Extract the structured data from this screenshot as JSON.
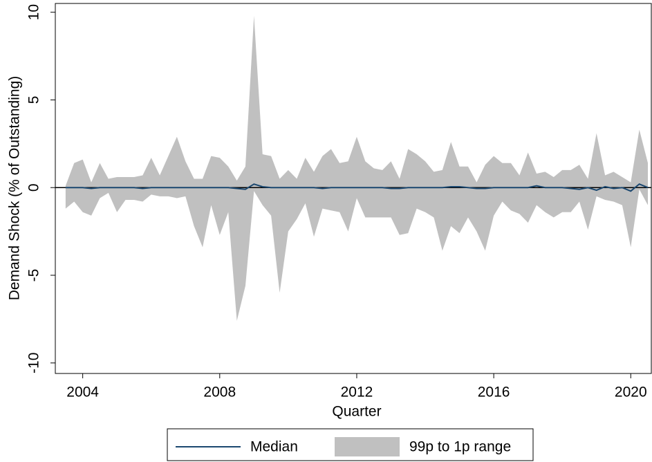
{
  "chart_data": {
    "type": "band-line",
    "x_label": "Quarter",
    "y_label": "Demand Shock (% of Outstanding)",
    "x": [
      2003.5,
      2003.75,
      2004,
      2004.25,
      2004.5,
      2004.75,
      2005,
      2005.25,
      2005.5,
      2005.75,
      2006,
      2006.25,
      2006.5,
      2006.75,
      2007,
      2007.25,
      2007.5,
      2007.75,
      2008,
      2008.25,
      2008.5,
      2008.75,
      2009,
      2009.25,
      2009.5,
      2009.75,
      2010,
      2010.25,
      2010.5,
      2010.75,
      2011,
      2011.25,
      2011.5,
      2011.75,
      2012,
      2012.25,
      2012.5,
      2012.75,
      2013,
      2013.25,
      2013.5,
      2013.75,
      2014,
      2014.25,
      2014.5,
      2014.75,
      2015,
      2015.25,
      2015.5,
      2015.75,
      2016,
      2016.25,
      2016.5,
      2016.75,
      2017,
      2017.25,
      2017.5,
      2017.75,
      2018,
      2018.25,
      2018.5,
      2018.75,
      2019,
      2019.25,
      2019.5,
      2019.75,
      2020,
      2020.25,
      2020.5
    ],
    "series": [
      {
        "name": "Median",
        "color": "#1a476f",
        "values": [
          0,
          0,
          0,
          -0.05,
          0,
          0,
          0,
          0,
          0,
          -0.05,
          0,
          0,
          0,
          0,
          0,
          0,
          0,
          0,
          0,
          0,
          -0.05,
          -0.1,
          0.2,
          0.05,
          0,
          0,
          0,
          0,
          0,
          0,
          -0.05,
          0,
          0,
          0,
          0,
          0,
          0,
          0,
          -0.05,
          -0.05,
          0,
          0,
          0,
          0,
          0,
          0.05,
          0.05,
          0,
          -0.05,
          -0.05,
          0,
          0,
          0,
          0,
          0,
          0.1,
          0,
          0,
          0,
          -0.05,
          -0.1,
          0,
          -0.15,
          0.05,
          -0.05,
          0,
          -0.2,
          0.2,
          0
        ]
      },
      {
        "name": "99p to 1p range",
        "color": "#c0c0c0",
        "high": [
          0.1,
          1.4,
          1.6,
          0.3,
          1.4,
          0.5,
          0.6,
          0.6,
          0.6,
          0.7,
          1.7,
          0.7,
          1.8,
          2.9,
          1.5,
          0.5,
          0.5,
          1.8,
          1.7,
          1.2,
          0.4,
          1.2,
          9.8,
          1.9,
          1.8,
          0.5,
          1.0,
          0.5,
          1.7,
          0.9,
          1.8,
          2.2,
          1.4,
          1.5,
          2.9,
          1.5,
          1.1,
          1.0,
          1.5,
          0.5,
          2.2,
          1.9,
          1.5,
          0.9,
          1.0,
          2.6,
          1.2,
          1.2,
          0.3,
          1.3,
          1.8,
          1.4,
          1.4,
          0.7,
          2.0,
          0.8,
          0.9,
          0.6,
          1.0,
          1.0,
          1.3,
          0.5,
          3.1,
          0.7,
          0.9,
          0.6,
          0.3,
          3.3,
          1.4
        ],
        "low": [
          -1.2,
          -0.8,
          -1.4,
          -1.6,
          -0.6,
          -0.3,
          -1.4,
          -0.7,
          -0.7,
          -0.8,
          -0.4,
          -0.5,
          -0.5,
          -0.6,
          -0.5,
          -2.2,
          -3.4,
          -1.0,
          -2.7,
          -1.4,
          -7.6,
          -5.6,
          -0.2,
          -1.0,
          -1.6,
          -6.0,
          -2.5,
          -1.8,
          -0.9,
          -2.8,
          -1.2,
          -1.3,
          -1.4,
          -2.5,
          -0.6,
          -1.7,
          -1.7,
          -1.7,
          -1.7,
          -2.7,
          -2.6,
          -1.2,
          -1.4,
          -1.7,
          -3.6,
          -2.2,
          -2.6,
          -1.7,
          -2.5,
          -3.6,
          -1.6,
          -0.8,
          -1.3,
          -1.5,
          -2.0,
          -1.0,
          -1.4,
          -1.7,
          -1.4,
          -1.4,
          -0.8,
          -2.4,
          -0.5,
          -0.7,
          -0.8,
          -1.0,
          -3.4,
          -0.1,
          -1.0
        ]
      }
    ],
    "xlim": [
      2003.2,
      2020.6
    ],
    "xticks": [
      2004,
      2008,
      2012,
      2016,
      2020
    ],
    "ylim": [
      -10.6,
      10.5
    ],
    "yticks": [
      10,
      5,
      0,
      -5,
      -10
    ],
    "zero_line": true,
    "legend": "bottom"
  }
}
